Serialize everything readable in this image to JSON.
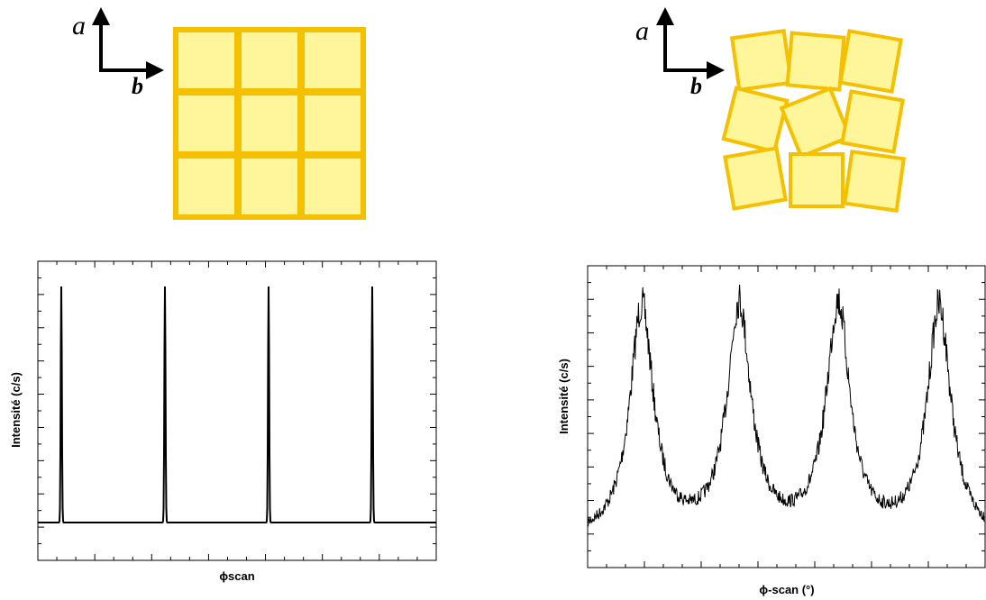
{
  "figure": {
    "left": {
      "axis_a": "a",
      "axis_b": "b",
      "y_label": "Intensité (c/s)",
      "x_label": "ϕscan"
    },
    "right": {
      "axis_a": "a",
      "axis_b": "b",
      "y_label": "Intensité (c/s)",
      "x_label": "ϕ-scan (°)"
    }
  }
}
